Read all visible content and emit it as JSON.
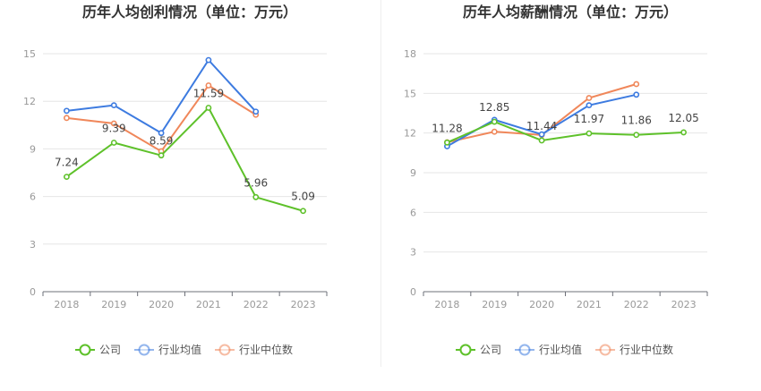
{
  "charts": [
    {
      "title": "历年人均创利情况（单位：万元）",
      "chart_data": {
        "type": "line",
        "title": "历年人均创利情况（单位：万元）",
        "categories": [
          "2018",
          "2019",
          "2020",
          "2021",
          "2022",
          "2023"
        ],
        "ylim": [
          0,
          15
        ],
        "yticks": [
          0,
          3,
          6,
          9,
          12,
          15
        ],
        "grid": true,
        "legend": "bottom",
        "series": [
          {
            "name": "公司",
            "color": "#5ec12a",
            "values": [
              7.24,
              9.39,
              8.59,
              11.59,
              5.96,
              5.09
            ],
            "labels": [
              "7.24",
              "9.39",
              "8.59",
              "11.59",
              "5.96",
              "5.09"
            ]
          },
          {
            "name": "行业均值",
            "color": "#3d7be0",
            "values": [
              11.4,
              11.75,
              10.0,
              14.6,
              11.35,
              null
            ]
          },
          {
            "name": "行业中位数",
            "color": "#f0875a",
            "values": [
              10.95,
              10.6,
              8.85,
              13.0,
              11.15,
              null
            ]
          }
        ]
      }
    },
    {
      "title": "历年人均薪酬情况（单位：万元）",
      "chart_data": {
        "type": "line",
        "title": "历年人均薪酬情况（单位：万元）",
        "categories": [
          "2018",
          "2019",
          "2020",
          "2021",
          "2022",
          "2023"
        ],
        "ylim": [
          0,
          18
        ],
        "yticks": [
          0,
          3,
          6,
          9,
          12,
          15,
          18
        ],
        "grid": true,
        "legend": "bottom",
        "series": [
          {
            "name": "公司",
            "color": "#5ec12a",
            "values": [
              11.28,
              12.85,
              11.44,
              11.97,
              11.86,
              12.05
            ],
            "labels": [
              "11.28",
              "12.85",
              "11.44",
              "11.97",
              "11.86",
              "12.05"
            ]
          },
          {
            "name": "行业均值",
            "color": "#3d7be0",
            "values": [
              11.0,
              13.0,
              11.9,
              14.1,
              14.9,
              null
            ]
          },
          {
            "name": "行业中位数",
            "color": "#f0875a",
            "values": [
              11.3,
              12.1,
              11.85,
              14.65,
              15.7,
              null
            ]
          }
        ]
      }
    }
  ],
  "legend": [
    {
      "name": "公司",
      "color": "#5ec12a"
    },
    {
      "name": "行业均值",
      "color": "#3d7be0"
    },
    {
      "name": "行业中位数",
      "color": "#f0875a"
    }
  ]
}
